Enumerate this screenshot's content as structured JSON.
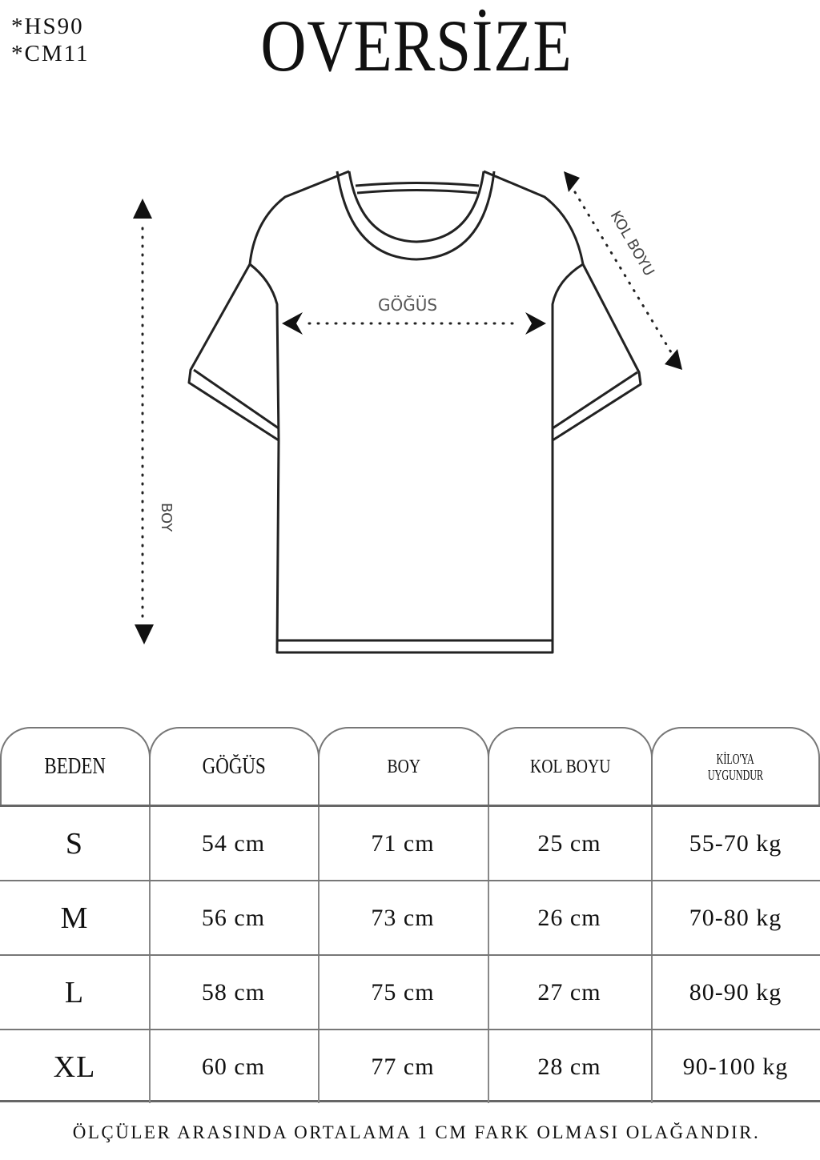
{
  "codes": [
    "*HS90",
    "*CM11"
  ],
  "title": "OVERSİZE",
  "diagram": {
    "labels": {
      "chest": "GÖĞÜS",
      "sleeve": "KOL BOYU",
      "length": "BOY"
    }
  },
  "table": {
    "headers": [
      "BEDEN",
      "GÖĞÜS",
      "BOY",
      "KOL BOYU",
      "KİLO'YA",
      "UYGUNDUR"
    ],
    "rows": [
      [
        "S",
        "54 cm",
        "71 cm",
        "25  cm",
        "55-70 kg"
      ],
      [
        "M",
        "56 cm",
        "73 cm",
        "26 cm",
        "70-80 kg"
      ],
      [
        "L",
        "58 cm",
        "75 cm",
        "27 cm",
        "80-90 kg"
      ],
      [
        "XL",
        "60 cm",
        "77 cm",
        "28 cm",
        "90-100 kg"
      ]
    ]
  },
  "footer": "ÖLÇÜLER ARASINDA ORTALAMA 1 CM FARK OLMASI OLAĞANDIR."
}
